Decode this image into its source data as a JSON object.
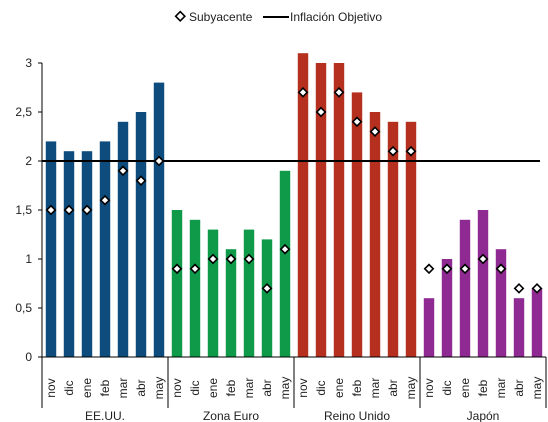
{
  "chart_data": {
    "type": "bar",
    "ylim": [
      0,
      3
    ],
    "yticks": [
      "0",
      "0,5",
      "1",
      "1,5",
      "2",
      "2,5",
      "3"
    ],
    "grid": false,
    "legend_position": "top-center",
    "legend": {
      "marker_label": "Subyacente",
      "line_label": "Inflación Objetivo"
    },
    "target_value": 2,
    "groups": [
      {
        "name": "EE.UU.",
        "color": "#0d4c7c",
        "months": [
          "nov",
          "dic",
          "ene",
          "feb",
          "mar",
          "abr",
          "may"
        ],
        "bars": [
          2.2,
          2.1,
          2.1,
          2.2,
          2.4,
          2.5,
          2.8
        ],
        "core": [
          1.5,
          1.5,
          1.5,
          1.6,
          1.9,
          1.8,
          2.0
        ]
      },
      {
        "name": "Zona Euro",
        "color": "#0e9a48",
        "months": [
          "nov",
          "dic",
          "ene",
          "feb",
          "mar",
          "abr",
          "may"
        ],
        "bars": [
          1.5,
          1.4,
          1.3,
          1.1,
          1.3,
          1.2,
          1.9
        ],
        "core": [
          0.9,
          0.9,
          1.0,
          1.0,
          1.0,
          0.7,
          1.1
        ]
      },
      {
        "name": "Reino Unido",
        "color": "#b5301f",
        "months": [
          "nov",
          "dic",
          "ene",
          "feb",
          "mar",
          "abr",
          "may"
        ],
        "bars": [
          3.1,
          3.0,
          3.0,
          2.7,
          2.5,
          2.4,
          2.4
        ],
        "core": [
          2.7,
          2.5,
          2.7,
          2.4,
          2.3,
          2.1,
          2.1
        ]
      },
      {
        "name": "Japón",
        "color": "#8e2a91",
        "months": [
          "nov",
          "dic",
          "ene",
          "feb",
          "mar",
          "abr",
          "may"
        ],
        "bars": [
          0.6,
          1.0,
          1.4,
          1.5,
          1.1,
          0.6,
          0.7
        ],
        "core": [
          0.9,
          0.9,
          0.9,
          1.0,
          0.9,
          0.7,
          0.7
        ]
      }
    ]
  }
}
